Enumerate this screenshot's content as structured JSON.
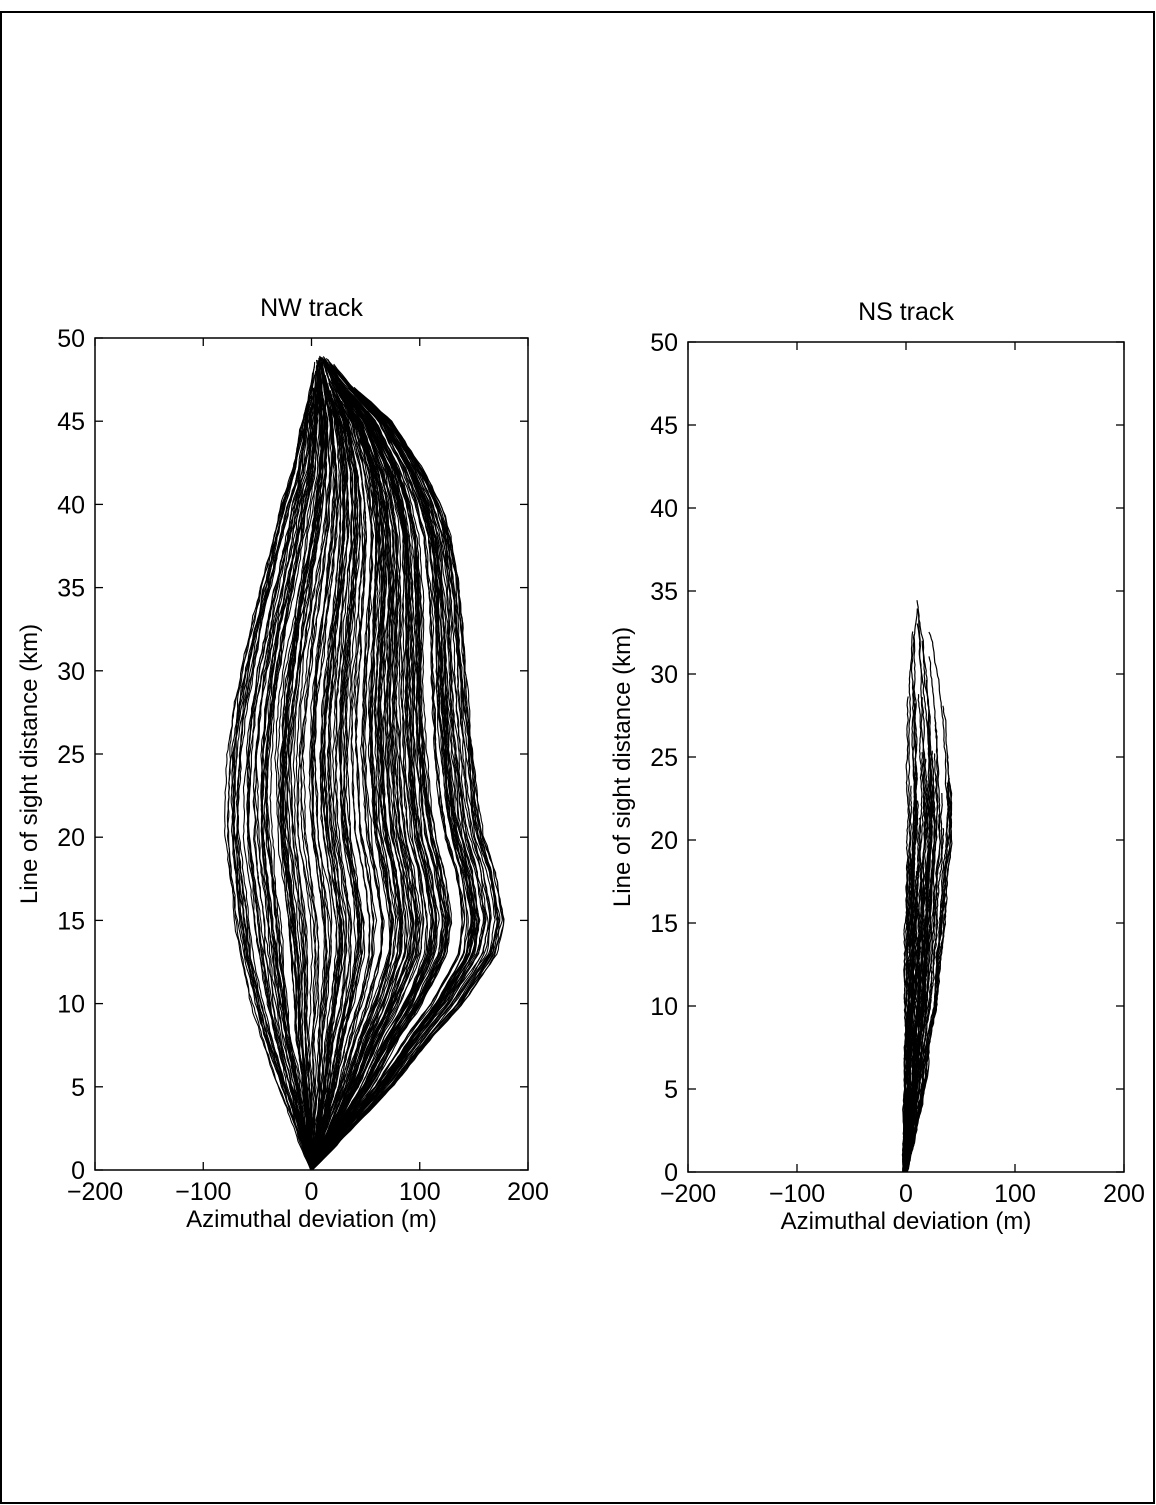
{
  "colors": {
    "ink": "#000000",
    "background": "#ffffff"
  },
  "chart_data": [
    {
      "type": "line",
      "title": "NW track",
      "xlabel": "Azimuthal deviation (m)",
      "ylabel": "Line of sight distance (km)",
      "xlim": [
        -200,
        200
      ],
      "ylim": [
        0,
        50
      ],
      "xticks": [
        "−200",
        "−100",
        "0",
        "100",
        "200"
      ],
      "yticks": [
        "0",
        "5",
        "10",
        "15",
        "20",
        "25",
        "30",
        "35",
        "40",
        "45",
        "50"
      ],
      "grid": false,
      "legend": "none",
      "series_count": 200,
      "envelope": {
        "y": [
          0,
          2,
          5,
          8,
          10,
          13,
          15,
          18,
          20,
          22,
          25,
          28,
          30,
          33,
          35,
          38,
          40,
          42,
          45,
          47,
          49
        ],
        "left": [
          0,
          -12,
          -30,
          -48,
          -58,
          -70,
          -75,
          -80,
          -82,
          -82,
          -80,
          -74,
          -68,
          -58,
          -50,
          -38,
          -30,
          -20,
          -10,
          -2,
          5
        ],
        "right": [
          0,
          30,
          75,
          112,
          140,
          172,
          178,
          170,
          160,
          155,
          150,
          145,
          143,
          140,
          137,
          130,
          120,
          105,
          75,
          40,
          12
        ]
      }
    },
    {
      "type": "line",
      "title": "NS track",
      "xlabel": "Azimuthal deviation (m)",
      "ylabel": "Line of sight distance (km)",
      "xlim": [
        -200,
        200
      ],
      "ylim": [
        0,
        50
      ],
      "xticks": [
        "−200",
        "−100",
        "0",
        "100",
        "200"
      ],
      "yticks": [
        "0",
        "5",
        "10",
        "15",
        "20",
        "25",
        "30",
        "35",
        "40",
        "45",
        "50"
      ],
      "grid": false,
      "legend": "none",
      "series_count": 60,
      "envelope": {
        "y": [
          0,
          2,
          5,
          8,
          10,
          13,
          15,
          18,
          20,
          22,
          25,
          28,
          30,
          32,
          34.5
        ],
        "left": [
          -3,
          -3,
          -2,
          -2,
          -2,
          -2,
          -2,
          -1,
          -1,
          0,
          0,
          1,
          1,
          3,
          8
        ],
        "right": [
          1,
          8,
          17,
          22,
          28,
          32,
          35,
          38,
          42,
          42,
          40,
          35,
          30,
          25,
          12
        ]
      }
    }
  ]
}
